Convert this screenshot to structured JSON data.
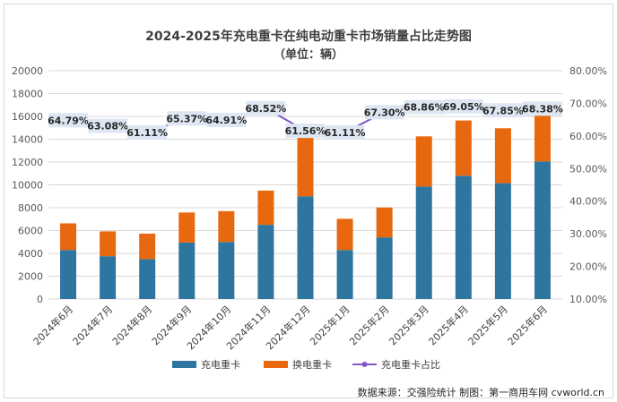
{
  "chart_data": {
    "type": "bar",
    "stacked": true,
    "title": "2024-2025年充电重卡在纯电动重卡市场销量占比走势图",
    "subtitle": "（单位：辆）",
    "categories": [
      "2024年6月",
      "2024年7月",
      "2024年8月",
      "2024年9月",
      "2024年10月",
      "2024年11月",
      "2024年12月",
      "2025年1月",
      "2025年2月",
      "2025年3月",
      "2025年4月",
      "2025年5月",
      "2025年6月"
    ],
    "series": [
      {
        "name": "充电重卡",
        "type": "bar",
        "axis": "left",
        "color": "#2e75a0",
        "values": [
          4300,
          3750,
          3500,
          4950,
          5000,
          6500,
          9000,
          4300,
          5400,
          9850,
          10800,
          10150,
          12050
        ]
      },
      {
        "name": "换电重卡",
        "type": "bar",
        "axis": "left",
        "color": "#e8680f",
        "values": [
          2330,
          2180,
          2230,
          2630,
          2700,
          3000,
          5270,
          2730,
          2620,
          4400,
          4840,
          4810,
          4150
        ]
      },
      {
        "name": "充电重卡占比",
        "type": "line",
        "axis": "right",
        "color": "#7e57c2",
        "values": [
          64.79,
          63.08,
          61.11,
          65.37,
          64.91,
          68.52,
          61.56,
          61.11,
          67.3,
          68.86,
          69.05,
          67.85,
          68.38
        ],
        "labels": [
          "64.79%",
          "63.08%",
          "61.11%",
          "65.37%",
          "64.91%",
          "68.52%",
          "61.56%",
          "61.11%",
          "67.30%",
          "68.86%",
          "69.05%",
          "67.85%",
          "68.38%"
        ]
      }
    ],
    "y_left": {
      "min": 0,
      "max": 20000,
      "step": 2000,
      "ticks": [
        "0",
        "2000",
        "4000",
        "6000",
        "8000",
        "10000",
        "12000",
        "14000",
        "16000",
        "18000",
        "20000"
      ]
    },
    "y_right": {
      "min": 10,
      "max": 80,
      "step": 10,
      "ticks": [
        "10.00%",
        "20.00%",
        "30.00%",
        "40.00%",
        "50.00%",
        "60.00%",
        "70.00%",
        "80.00%"
      ]
    },
    "legend": [
      "充电重卡",
      "换电重卡",
      "充电重卡占比"
    ],
    "legend_position": "bottom",
    "grid": true
  },
  "source_text": "数据来源：交强险统计  制图：第一商用车网 cvworld.cn"
}
